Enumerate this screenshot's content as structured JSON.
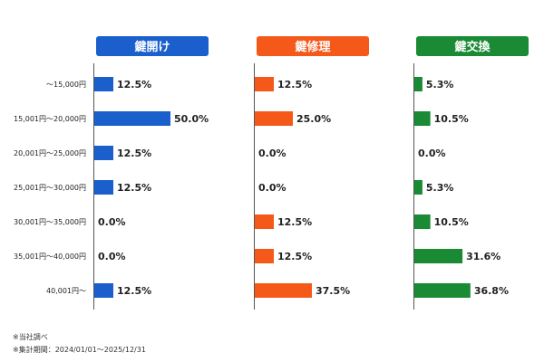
{
  "chart_data": {
    "type": "bar",
    "orientation": "horizontal",
    "categories": [
      "～15,000円",
      "15,001円～20,000円",
      "20,001円～25,000円",
      "25,001円～30,000円",
      "30,001円～35,000円",
      "35,001円～40,000円",
      "40,001円～"
    ],
    "value_unit": "%",
    "series": [
      {
        "name": "鍵開け",
        "color": "#1a5fcc",
        "values": [
          12.5,
          50.0,
          12.5,
          12.5,
          0.0,
          0.0,
          12.5
        ]
      },
      {
        "name": "鍵修理",
        "color": "#f4591a",
        "values": [
          12.5,
          25.0,
          0.0,
          0.0,
          12.5,
          12.5,
          37.5
        ]
      },
      {
        "name": "鍵交換",
        "color": "#1a8a35",
        "values": [
          5.3,
          10.5,
          0.0,
          5.3,
          10.5,
          31.6,
          36.8
        ]
      }
    ],
    "xlim": [
      0,
      50
    ],
    "grid": false
  },
  "footnotes": [
    "※当社調べ",
    "※集計期間：2024/01/01～2025/12/31"
  ]
}
